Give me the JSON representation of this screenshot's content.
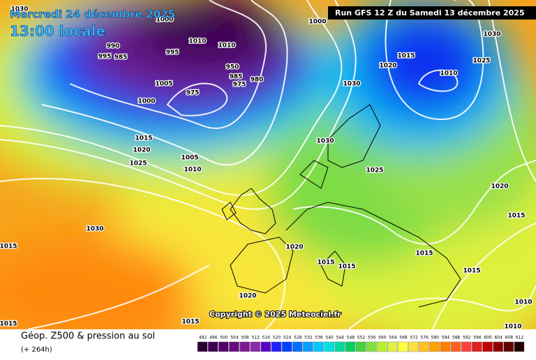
{
  "header": {
    "date": "Mercredi 24 décembre 2025",
    "time": "13:00 locale",
    "run": "Run GFS 12 Z du Samedi 13 décembre 2025"
  },
  "copyright": "Copyright © 2025 Meteociel.fr",
  "footer": {
    "title": "Géop. Z500 & pression au sol",
    "lead": "(+ 264h)"
  },
  "isobars": [
    "1030",
    "1000",
    "1000",
    "990",
    "995",
    "985",
    "995",
    "1010",
    "1010",
    "950",
    "985",
    "975",
    "980",
    "1005",
    "975",
    "1000",
    "1015",
    "1020",
    "1025",
    "1005",
    "1010",
    "1030",
    "1030",
    "1025",
    "1015",
    "1020",
    "1010",
    "1030",
    "1025",
    "1020",
    "1015",
    "1030",
    "1015",
    "1020",
    "1015",
    "1015",
    "1015",
    "1015",
    "1020",
    "1010",
    "1015",
    "1015",
    "1010"
  ],
  "scale": {
    "labels": [
      492,
      496,
      500,
      504,
      508,
      512,
      516,
      520,
      524,
      528,
      532,
      536,
      540,
      544,
      548,
      552,
      556,
      560,
      564,
      568,
      572,
      576,
      580,
      584,
      588,
      592,
      596,
      600,
      604,
      608,
      612
    ],
    "colors": [
      "#2a0033",
      "#3d0052",
      "#52006b",
      "#6a0a82",
      "#7d1a96",
      "#8b2ca8",
      "#5a00c8",
      "#2020ff",
      "#0040ff",
      "#0070ff",
      "#00a0ff",
      "#00c8ff",
      "#00e0e0",
      "#00d8a0",
      "#00d060",
      "#40d040",
      "#80e040",
      "#b8f030",
      "#e0f040",
      "#ffff40",
      "#ffe040",
      "#ffc020",
      "#ffa000",
      "#ff8000",
      "#ff6020",
      "#ff4040",
      "#e02020",
      "#c00000",
      "#900000",
      "#600000",
      "#200000"
    ]
  }
}
